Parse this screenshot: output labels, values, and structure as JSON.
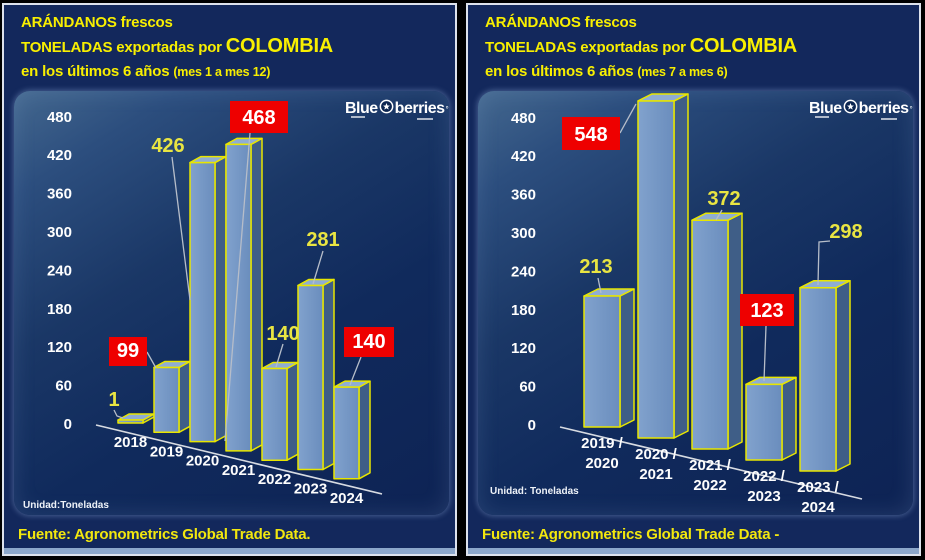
{
  "page": {
    "background_color": "#000000"
  },
  "brand": {
    "part1": "Blue",
    "part2": "berries",
    "mark": "°"
  },
  "panels": [
    {
      "title_line1": "ARÁNDANOS frescos",
      "title_line2_prefix": "TONELADAS exportadas por ",
      "title_line2_emphasis": "COLOMBIA",
      "title_line3_prefix": "en los últimos 6 años ",
      "title_line3_suffix": "(mes 1 a mes 12)",
      "unit_label": "Unidad:Toneladas",
      "source_label": "Fuente: Agronometrics Global Trade Data."
    },
    {
      "title_line1": "ARÁNDANOS frescos",
      "title_line2_prefix": "TONELADAS exportadas por ",
      "title_line2_emphasis": "COLOMBIA",
      "title_line3_prefix": "en los últimos 6 años ",
      "title_line3_suffix": "(mes 7  a mes  6)",
      "unit_label": "Unidad: Toneladas",
      "source_label": "Fuente: Agronometrics Global Trade Data -"
    }
  ],
  "chart_data": [
    {
      "type": "bar",
      "title": "ARÁNDANOS frescos - TONELADAS exportadas por COLOMBIA en los últimos 6 años (mes 1 a mes 12)",
      "categories": [
        "2018",
        "2019",
        "2020",
        "2021",
        "2022",
        "2023",
        "2024"
      ],
      "values": [
        1,
        99,
        426,
        468,
        140,
        281,
        140
      ],
      "highlighted": [
        false,
        true,
        false,
        true,
        false,
        false,
        true
      ],
      "unit": "Toneladas",
      "ylabel": "Toneladas",
      "yticks": [
        0,
        60,
        120,
        180,
        240,
        300,
        360,
        420,
        480
      ],
      "ylim": [
        0,
        480
      ],
      "grid": false,
      "legend": false,
      "style_3d": true,
      "colors": {
        "bar_front": "#7596c5",
        "bar_side": "#3f5e87",
        "bar_top": "#8fadd3",
        "outline": "#e8e600",
        "highlight_label_bg": "#ee0000",
        "highlight_label_text": "#ffffff",
        "label_yellow": "#e9e542",
        "axis_text": "#ffffff",
        "baseline": "#d7dbe2",
        "leader": "#b6bdc9"
      }
    },
    {
      "type": "bar",
      "title": "ARÁNDANOS frescos - TONELADAS exportadas por COLOMBIA en los últimos 6 años (mes 7 a mes 6)",
      "categories": [
        "2019 / 2020",
        "2020 / 2021",
        "2021 / 2022",
        "2022 / 2023",
        "2023 / 2024"
      ],
      "values": [
        213,
        548,
        372,
        123,
        298
      ],
      "highlighted": [
        false,
        true,
        false,
        true,
        false
      ],
      "unit": "Toneladas",
      "ylabel": "Toneladas",
      "yticks": [
        0,
        60,
        120,
        180,
        240,
        300,
        360,
        420,
        480
      ],
      "ylim": [
        0,
        480
      ],
      "grid": false,
      "legend": false,
      "style_3d": true,
      "colors": {
        "bar_front": "#7596c5",
        "bar_side": "#3f5e87",
        "bar_top": "#8fadd3",
        "outline": "#e8e600",
        "highlight_label_bg": "#ee0000",
        "highlight_label_text": "#ffffff",
        "label_yellow": "#e9e542",
        "axis_text": "#ffffff",
        "baseline": "#d7dbe2",
        "leader": "#b6bdc9"
      }
    }
  ]
}
